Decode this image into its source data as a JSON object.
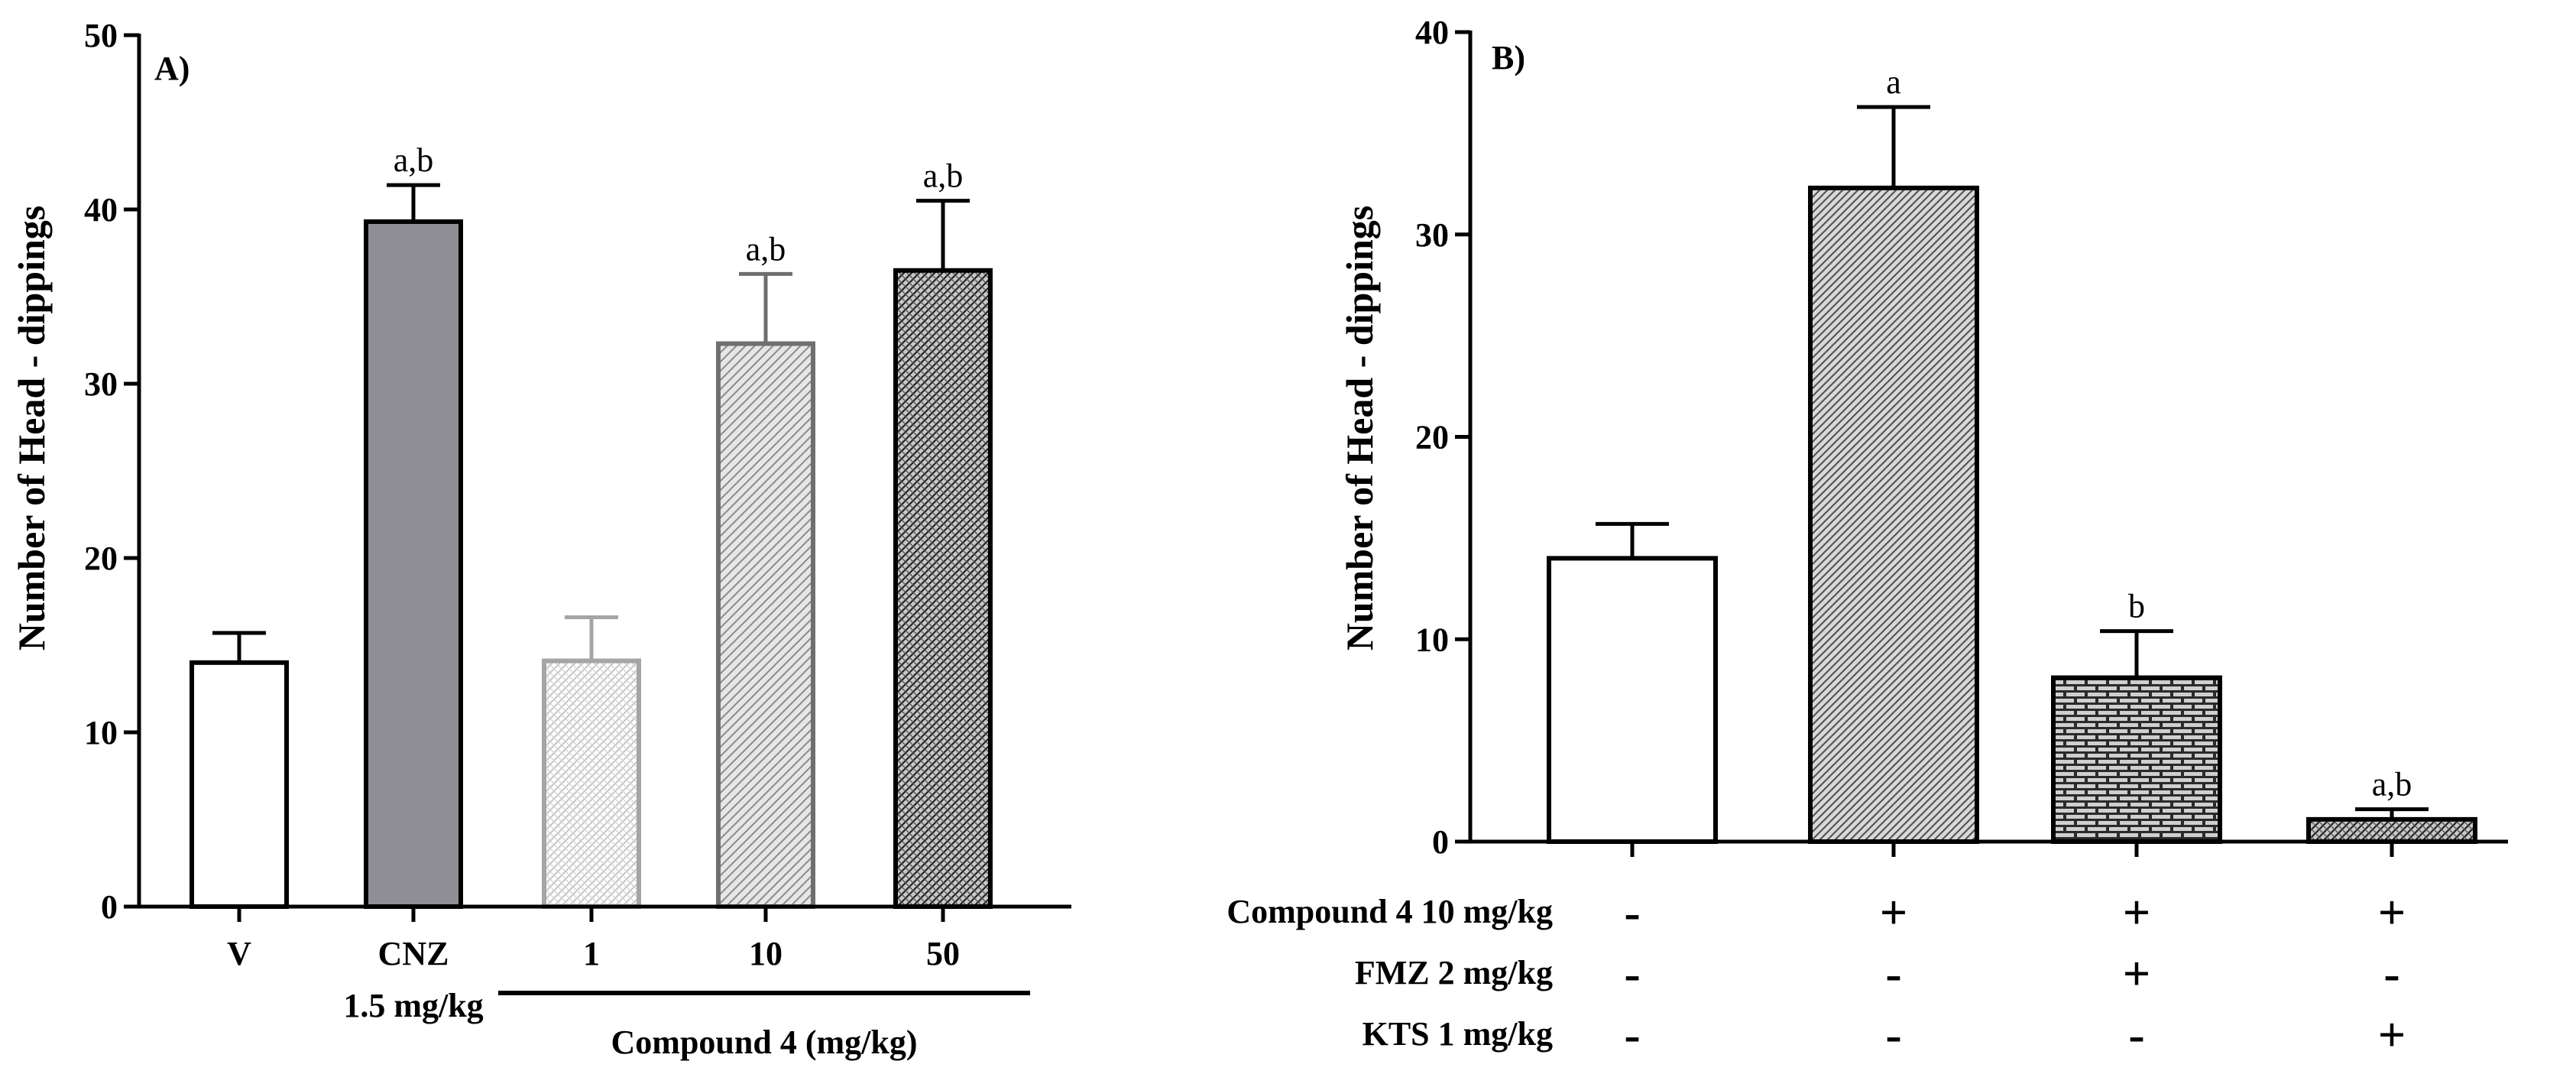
{
  "chart_data": [
    {
      "type": "bar",
      "panel_label": "A)",
      "title": "",
      "xlabel": "",
      "ylabel": "Number of Head - dippings",
      "ylim": [
        0,
        50
      ],
      "yticks": [
        "0",
        "10",
        "20",
        "30",
        "40",
        "50"
      ],
      "grid": false,
      "categories": [
        "V",
        "CNZ",
        "1",
        "10",
        "50"
      ],
      "category_sublabels": [
        "",
        "1.5 mg/kg",
        "",
        "",
        ""
      ],
      "group_label": "Compound 4 (mg/kg)",
      "values": [
        14,
        39.3,
        14.1,
        32.3,
        36.5
      ],
      "errors": [
        1.7,
        2.1,
        2.5,
        4.0,
        4.0
      ],
      "annotations": [
        "",
        "a,b",
        "",
        "a,b",
        "a,b"
      ],
      "bar_fills": [
        "white",
        "#8e8e94",
        "light-dot-pattern",
        "light-hatch-pattern",
        "dense-crosshatch-pattern"
      ]
    },
    {
      "type": "bar",
      "panel_label": "B)",
      "title": "",
      "xlabel": "",
      "ylabel": "Number of Head - dippings",
      "ylim": [
        0,
        40
      ],
      "yticks": [
        "0",
        "10",
        "20",
        "30",
        "40"
      ],
      "grid": false,
      "values": [
        14,
        32.3,
        8.1,
        1.1
      ],
      "errors": [
        1.7,
        4.0,
        2.3,
        0.5
      ],
      "annotations": [
        "",
        "a",
        "b",
        "a,b"
      ],
      "bar_fills": [
        "white",
        "hatch-pattern",
        "brick-pattern",
        "dense-crosshatch-pattern"
      ],
      "conditions": [
        {
          "label": "Compound 4 10 mg/kg",
          "signs": [
            "-",
            "+",
            "+",
            "+"
          ]
        },
        {
          "label": "FMZ 2 mg/kg",
          "signs": [
            "-",
            "-",
            "+",
            "-"
          ]
        },
        {
          "label": "KTS 1 mg/kg",
          "signs": [
            "-",
            "-",
            "-",
            "+"
          ]
        }
      ]
    }
  ]
}
